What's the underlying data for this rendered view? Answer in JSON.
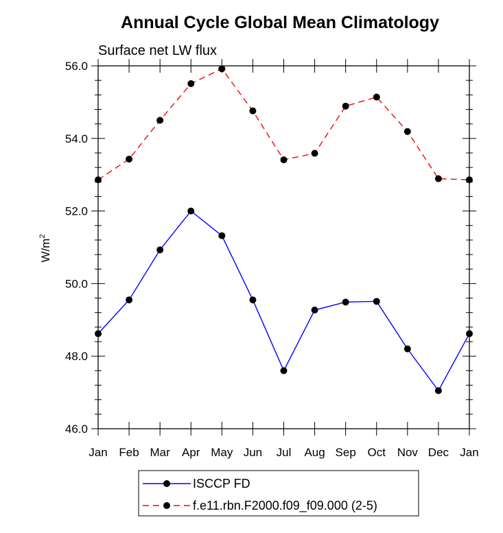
{
  "chart_data": {
    "type": "line",
    "title": "Annual Cycle Global Mean Climatology",
    "subtitle": "Surface net LW flux",
    "ylabel": "W/m",
    "ylabel_sup": "2",
    "xlabel": "",
    "ylim": [
      46.0,
      56.0
    ],
    "y_ticks": [
      "46.0",
      "48.0",
      "50.0",
      "52.0",
      "54.0",
      "56.0"
    ],
    "categories": [
      "Jan",
      "Feb",
      "Mar",
      "Apr",
      "May",
      "Jun",
      "Jul",
      "Aug",
      "Sep",
      "Oct",
      "Nov",
      "Dec",
      "Jan"
    ],
    "series": [
      {
        "name": "ISCCP FD",
        "color": "#0000ff",
        "dash": "solid",
        "values": [
          48.62,
          49.55,
          50.93,
          52.0,
          51.32,
          49.55,
          47.6,
          49.27,
          49.49,
          49.51,
          48.2,
          47.05,
          48.62
        ]
      },
      {
        "name": "f.e11.rbn.F2000.f09_f09.000 (2-5)",
        "color": "#ff0000",
        "dash": "dashed",
        "values": [
          52.86,
          53.43,
          54.5,
          55.51,
          55.92,
          54.76,
          53.41,
          53.59,
          54.89,
          55.14,
          54.19,
          52.89,
          52.86
        ]
      }
    ],
    "legend_position": "bottom"
  }
}
